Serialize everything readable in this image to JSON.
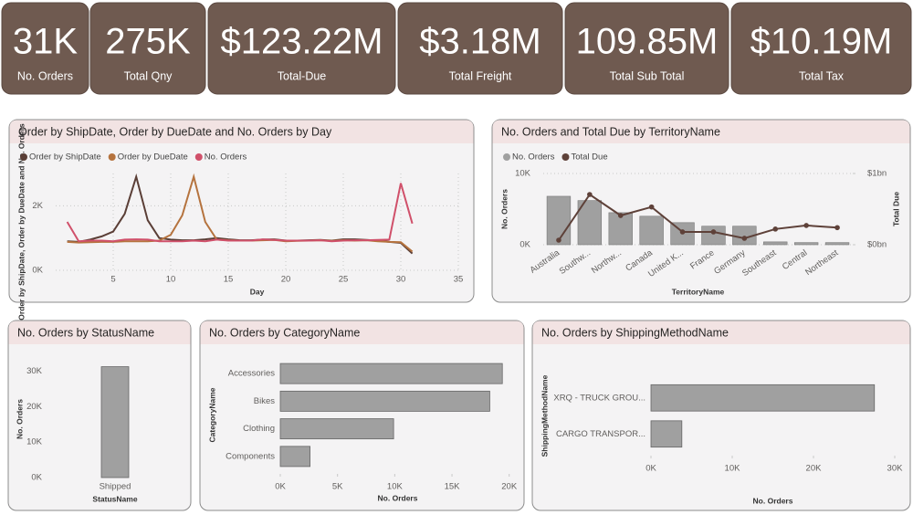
{
  "cards": [
    {
      "value": "31K",
      "label": "No. Orders"
    },
    {
      "value": "275K",
      "label": "Total Qny"
    },
    {
      "value": "$123.22M",
      "label": "Total-Due"
    },
    {
      "value": "$3.18M",
      "label": "Total Freight"
    },
    {
      "value": "109.85M",
      "label": "Total Sub Total"
    },
    {
      "value": "$10.19M",
      "label": "Total Tax"
    }
  ],
  "chart_data": [
    {
      "type": "line",
      "title": "Order by ShipDate, Order by DueDate and No. Orders by Day",
      "x_label": "Day",
      "y_label": "Order by ShipDate, Order by DueDate and No. Orders",
      "x": [
        1,
        2,
        3,
        4,
        5,
        6,
        7,
        8,
        9,
        10,
        11,
        12,
        13,
        14,
        15,
        16,
        17,
        18,
        19,
        20,
        21,
        22,
        23,
        24,
        25,
        26,
        27,
        28,
        29,
        30,
        31
      ],
      "xlim": [
        0,
        35
      ],
      "xticks": [
        5,
        10,
        15,
        20,
        25,
        30,
        35
      ],
      "ylim": [
        0,
        3000
      ],
      "yticks": [
        {
          "value": 0,
          "label": "0K"
        },
        {
          "value": 2000,
          "label": "2K"
        }
      ],
      "grid": true,
      "legend": "top-left",
      "series": [
        {
          "name": "Order by ShipDate",
          "color": "#5a3e36",
          "values": [
            900,
            880,
            950,
            1050,
            1200,
            1750,
            2900,
            1550,
            1000,
            950,
            930,
            930,
            960,
            1000,
            960,
            930,
            930,
            950,
            960,
            920,
            920,
            930,
            940,
            920,
            960,
            960,
            940,
            920,
            880,
            850,
            520
          ]
        },
        {
          "name": "Order by DueDate",
          "color": "#b5733e",
          "values": [
            880,
            860,
            870,
            880,
            880,
            900,
            900,
            900,
            920,
            1100,
            1700,
            2900,
            1500,
            950,
            930,
            920,
            920,
            930,
            940,
            900,
            910,
            920,
            930,
            910,
            930,
            920,
            930,
            900,
            880,
            870,
            580
          ]
        },
        {
          "name": "No. Orders",
          "color": "#d0506a",
          "values": [
            1500,
            900,
            920,
            920,
            900,
            950,
            960,
            950,
            900,
            900,
            900,
            920,
            900,
            950,
            920,
            920,
            920,
            960,
            940,
            920,
            920,
            920,
            930,
            900,
            920,
            930,
            930,
            940,
            950,
            2700,
            1450
          ]
        }
      ]
    },
    {
      "type": "combo",
      "title": "No. Orders and Total Due by TerritoryName",
      "x_label": "TerritoryName",
      "y_label": "No. Orders",
      "y2_label": "Total Due",
      "categories": [
        "Australia",
        "Southw...",
        "Northw...",
        "Canada",
        "United K...",
        "France",
        "Germany",
        "Southeast",
        "Central",
        "Northeast"
      ],
      "ylim": [
        0,
        10000
      ],
      "yticks": [
        {
          "value": 0,
          "label": "0K"
        },
        {
          "value": 10000,
          "label": "10K"
        }
      ],
      "y2lim": [
        0,
        1000000000
      ],
      "y2ticks": [
        {
          "value": 0,
          "label": "$0bn"
        },
        {
          "value": 1000000000,
          "label": "$1bn"
        }
      ],
      "grid": true,
      "legend": "top-left",
      "series": [
        {
          "name": "No. Orders",
          "type": "bar",
          "color": "#a0a0a0",
          "values": [
            6800,
            6200,
            4500,
            4000,
            3100,
            2600,
            2600,
            400,
            300,
            300
          ]
        },
        {
          "name": "Total Due",
          "type": "line",
          "axis": "y2",
          "color": "#5e4139",
          "values": [
            64000000,
            705000000,
            410000000,
            530000000,
            180000000,
            180000000,
            90000000,
            220000000,
            270000000,
            240000000
          ]
        }
      ]
    },
    {
      "type": "bar",
      "title": "No. Orders by StatusName",
      "x_label": "StatusName",
      "y_label": "No. Orders",
      "categories": [
        "Shipped"
      ],
      "values": [
        31300
      ],
      "color": "#a0a0a0",
      "ylim": [
        0,
        33000
      ],
      "yticks": [
        {
          "value": 0,
          "label": "0K"
        },
        {
          "value": 10000,
          "label": "10K"
        },
        {
          "value": 20000,
          "label": "20K"
        },
        {
          "value": 30000,
          "label": "30K"
        }
      ],
      "grid": false
    },
    {
      "type": "hbar",
      "title": "No. Orders by CategoryName",
      "x_label": "No. Orders",
      "y_label": "CategoryName",
      "categories": [
        "Accessories",
        "Bikes",
        "Clothing",
        "Components"
      ],
      "values": [
        19400,
        18300,
        9900,
        2600
      ],
      "color": "#a0a0a0",
      "xlim": [
        0,
        20500
      ],
      "xticks": [
        {
          "value": 0,
          "label": "0K"
        },
        {
          "value": 5000,
          "label": "5K"
        },
        {
          "value": 10000,
          "label": "10K"
        },
        {
          "value": 15000,
          "label": "15K"
        },
        {
          "value": 20000,
          "label": "20K"
        }
      ],
      "grid": false
    },
    {
      "type": "hbar",
      "title": "No. Orders by ShippingMethodName",
      "x_label": "No. Orders",
      "y_label": "ShippingMethodName",
      "categories": [
        "XRQ - TRUCK GROU...",
        "CARGO TRANSPOR..."
      ],
      "values": [
        27500,
        3800
      ],
      "color": "#a0a0a0",
      "xlim": [
        0,
        30000
      ],
      "xticks": [
        {
          "value": 0,
          "label": "0K"
        },
        {
          "value": 10000,
          "label": "10K"
        },
        {
          "value": 20000,
          "label": "20K"
        },
        {
          "value": 30000,
          "label": "30K"
        }
      ],
      "grid": false
    }
  ]
}
